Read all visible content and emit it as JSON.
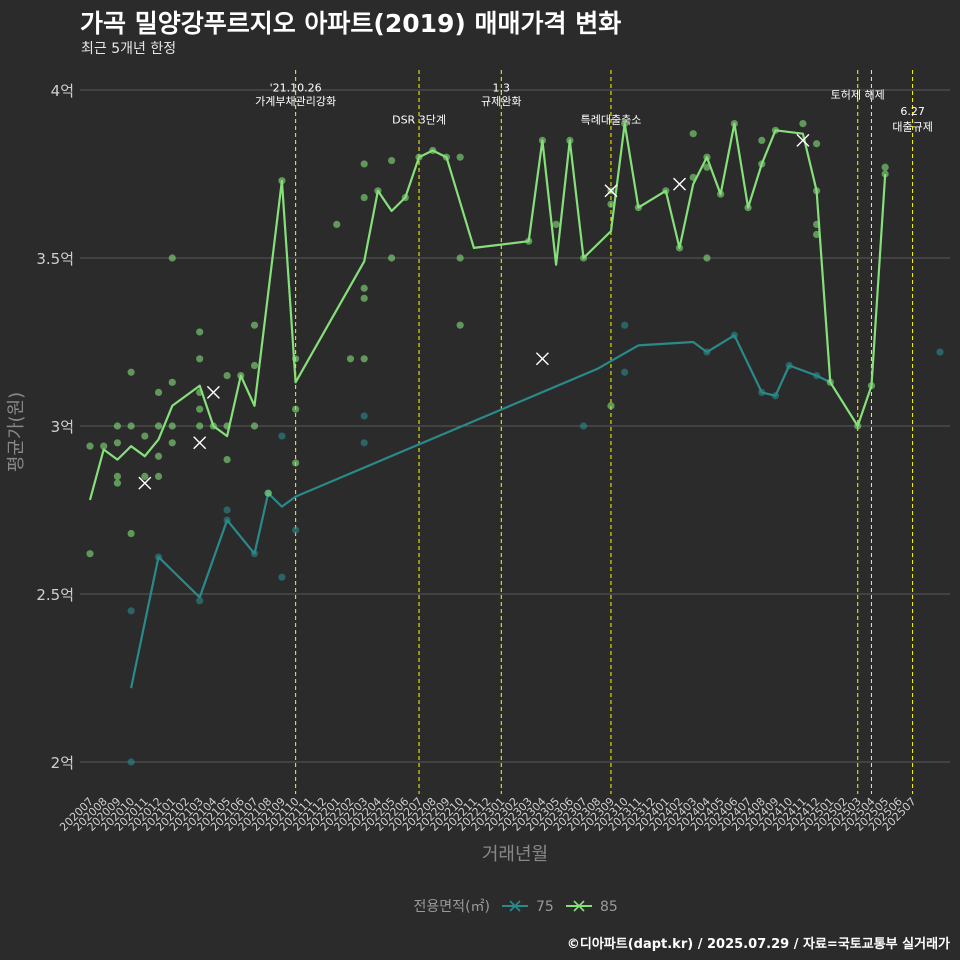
{
  "title": "가곡 밀양강푸르지오 아파트(2019) 매매가격 변화",
  "subtitle": "최근 5개년 한정",
  "credit": "©디아파트(dapt.kr) / 2025.07.29 / 자료=국토교통부 실거래가",
  "colors": {
    "background": "#2b2b2c",
    "grid": "#5a5a5a",
    "series_75": "#2a8a8a",
    "series_85": "#86e07a",
    "event_line": "#ffff00"
  },
  "chart_data": {
    "type": "line",
    "xlabel": "거래년월",
    "ylabel": "평균가(원)",
    "ylim": [
      1.85,
      4.05
    ],
    "yticks": [
      2,
      2.5,
      3,
      3.5,
      4
    ],
    "ytick_labels": [
      "2억",
      "2.5억",
      "3억",
      "3.5억",
      "4억"
    ],
    "grid": true,
    "categories": [
      "202007",
      "202008",
      "202009",
      "202010",
      "202011",
      "202012",
      "202101",
      "202102",
      "202103",
      "202104",
      "202105",
      "202106",
      "202107",
      "202108",
      "202109",
      "202110",
      "202111",
      "202112",
      "202201",
      "202202",
      "202203",
      "202204",
      "202205",
      "202206",
      "202207",
      "202208",
      "202209",
      "202210",
      "202211",
      "202212",
      "202301",
      "202302",
      "202303",
      "202304",
      "202305",
      "202306",
      "202307",
      "202308",
      "202309",
      "202310",
      "202311",
      "202312",
      "202401",
      "202402",
      "202403",
      "202404",
      "202405",
      "202406",
      "202407",
      "202408",
      "202409",
      "202410",
      "202411",
      "202412",
      "202501",
      "202502",
      "202503",
      "202504",
      "202505",
      "202506",
      "202507"
    ],
    "legend": {
      "title": "전용면적(㎡)",
      "position": "bottom",
      "entries": [
        "75",
        "85"
      ]
    },
    "series": [
      {
        "name": "75",
        "color": "#2a8a8a",
        "line": [
          [
            3,
            2.22
          ],
          [
            5,
            2.61
          ],
          [
            8,
            2.49
          ],
          [
            10,
            2.72
          ],
          [
            12,
            2.62
          ],
          [
            13,
            2.8
          ],
          [
            14,
            2.76
          ],
          [
            15,
            2.79
          ],
          [
            37,
            3.17
          ],
          [
            40,
            3.24
          ],
          [
            44,
            3.25
          ],
          [
            45,
            3.22
          ],
          [
            47,
            3.27
          ],
          [
            49,
            3.1
          ],
          [
            50,
            3.09
          ],
          [
            51,
            3.18
          ],
          [
            53,
            3.15
          ],
          [
            54,
            3.13
          ]
        ],
        "points": [
          [
            3,
            2.45
          ],
          [
            3,
            2.0
          ],
          [
            5,
            2.61
          ],
          [
            8,
            2.48
          ],
          [
            10,
            2.72
          ],
          [
            10,
            2.75
          ],
          [
            12,
            2.62
          ],
          [
            13,
            2.8
          ],
          [
            14,
            2.55
          ],
          [
            14,
            2.97
          ],
          [
            15,
            2.69
          ],
          [
            20,
            3.03
          ],
          [
            20,
            2.95
          ],
          [
            36,
            3.0
          ],
          [
            39,
            3.3
          ],
          [
            39,
            3.16
          ],
          [
            45,
            3.22
          ],
          [
            47,
            3.27
          ],
          [
            49,
            3.1
          ],
          [
            50,
            3.09
          ],
          [
            51,
            3.18
          ],
          [
            53,
            3.15
          ],
          [
            62,
            3.22
          ]
        ],
        "x_marks": []
      },
      {
        "name": "85",
        "color": "#86e07a",
        "line": [
          [
            0,
            2.78
          ],
          [
            1,
            2.93
          ],
          [
            2,
            2.9
          ],
          [
            3,
            2.94
          ],
          [
            4,
            2.91
          ],
          [
            5,
            2.96
          ],
          [
            6,
            3.06
          ],
          [
            8,
            3.12
          ],
          [
            9,
            3.0
          ],
          [
            10,
            2.97
          ],
          [
            11,
            3.15
          ],
          [
            12,
            3.06
          ],
          [
            14,
            3.73
          ],
          [
            15,
            3.13
          ],
          [
            20,
            3.49
          ],
          [
            21,
            3.7
          ],
          [
            22,
            3.64
          ],
          [
            23,
            3.68
          ],
          [
            24,
            3.8
          ],
          [
            25,
            3.82
          ],
          [
            26,
            3.8
          ],
          [
            28,
            3.53
          ],
          [
            32,
            3.55
          ],
          [
            33,
            3.85
          ],
          [
            34,
            3.48
          ],
          [
            35,
            3.85
          ],
          [
            36,
            3.5
          ],
          [
            38,
            3.58
          ],
          [
            39,
            3.9
          ],
          [
            40,
            3.65
          ],
          [
            42,
            3.7
          ],
          [
            43,
            3.53
          ],
          [
            44,
            3.72
          ],
          [
            45,
            3.8
          ],
          [
            46,
            3.69
          ],
          [
            47,
            3.9
          ],
          [
            48,
            3.65
          ],
          [
            49,
            3.78
          ],
          [
            50,
            3.88
          ],
          [
            52,
            3.87
          ],
          [
            53,
            3.7
          ],
          [
            54,
            3.13
          ],
          [
            56,
            3.0
          ],
          [
            57,
            3.12
          ],
          [
            58,
            3.75
          ]
        ],
        "points": [
          [
            0,
            2.94
          ],
          [
            0,
            2.62
          ],
          [
            1,
            2.94
          ],
          [
            2,
            2.85
          ],
          [
            2,
            2.83
          ],
          [
            2,
            2.95
          ],
          [
            2,
            3.0
          ],
          [
            3,
            3.16
          ],
          [
            3,
            2.68
          ],
          [
            3,
            3.0
          ],
          [
            4,
            2.85
          ],
          [
            4,
            2.97
          ],
          [
            5,
            2.85
          ],
          [
            5,
            2.91
          ],
          [
            5,
            3.0
          ],
          [
            5,
            3.1
          ],
          [
            6,
            3.5
          ],
          [
            6,
            3.13
          ],
          [
            6,
            3.0
          ],
          [
            6,
            2.95
          ],
          [
            8,
            3.28
          ],
          [
            8,
            3.2
          ],
          [
            8,
            3.1
          ],
          [
            8,
            3.05
          ],
          [
            8,
            3.0
          ],
          [
            9,
            3.0
          ],
          [
            10,
            3.15
          ],
          [
            10,
            3.0
          ],
          [
            10,
            2.9
          ],
          [
            11,
            3.15
          ],
          [
            12,
            3.3
          ],
          [
            12,
            3.18
          ],
          [
            12,
            3.0
          ],
          [
            13,
            2.8
          ],
          [
            14,
            3.73
          ],
          [
            15,
            3.2
          ],
          [
            15,
            3.05
          ],
          [
            15,
            2.89
          ],
          [
            18,
            3.6
          ],
          [
            19,
            3.2
          ],
          [
            20,
            3.78
          ],
          [
            20,
            3.68
          ],
          [
            20,
            3.41
          ],
          [
            20,
            3.38
          ],
          [
            20,
            3.2
          ],
          [
            21,
            3.7
          ],
          [
            22,
            3.79
          ],
          [
            22,
            3.5
          ],
          [
            23,
            3.68
          ],
          [
            24,
            3.8
          ],
          [
            25,
            3.82
          ],
          [
            26,
            3.8
          ],
          [
            27,
            3.8
          ],
          [
            27,
            3.5
          ],
          [
            27,
            3.3
          ],
          [
            32,
            3.55
          ],
          [
            33,
            3.85
          ],
          [
            34,
            3.6
          ],
          [
            35,
            3.85
          ],
          [
            36,
            3.5
          ],
          [
            38,
            3.7
          ],
          [
            38,
            3.66
          ],
          [
            38,
            3.06
          ],
          [
            39,
            3.9
          ],
          [
            40,
            3.65
          ],
          [
            42,
            3.7
          ],
          [
            43,
            3.53
          ],
          [
            44,
            3.74
          ],
          [
            44,
            3.87
          ],
          [
            45,
            3.8
          ],
          [
            45,
            3.77
          ],
          [
            45,
            3.5
          ],
          [
            46,
            3.69
          ],
          [
            47,
            3.9
          ],
          [
            48,
            3.65
          ],
          [
            49,
            3.78
          ],
          [
            49,
            3.85
          ],
          [
            50,
            3.88
          ],
          [
            52,
            3.9
          ],
          [
            53,
            3.84
          ],
          [
            53,
            3.7
          ],
          [
            53,
            3.6
          ],
          [
            53,
            3.57
          ],
          [
            54,
            3.13
          ],
          [
            56,
            3.0
          ],
          [
            57,
            3.12
          ],
          [
            58,
            3.77
          ],
          [
            58,
            3.75
          ]
        ],
        "x_marks": [
          [
            4,
            2.83
          ],
          [
            8,
            2.95
          ],
          [
            9,
            3.1
          ],
          [
            33,
            3.2
          ],
          [
            38,
            3.7
          ],
          [
            43,
            3.72
          ],
          [
            52,
            3.85
          ]
        ]
      }
    ],
    "annotations": [
      {
        "x": 15,
        "lines": [
          "'21.10.26",
          "가계부채관리강화"
        ],
        "label_y": [
          3.995,
          3.955
        ]
      },
      {
        "x": 24,
        "lines": [
          "DSR 3단계"
        ],
        "label_y": [
          3.9
        ]
      },
      {
        "x": 30,
        "lines": [
          "1.3",
          "규제완화"
        ],
        "label_y": [
          3.995,
          3.955
        ]
      },
      {
        "x": 38,
        "lines": [
          "특례대출축소"
        ],
        "label_y": [
          3.9
        ]
      },
      {
        "x": 56,
        "lines": [
          "토허제 해제"
        ],
        "label_y": [
          3.975
        ]
      },
      {
        "x": 57,
        "lines": [],
        "label_y": []
      },
      {
        "x": 60,
        "lines": [
          "6.27",
          "대출규제"
        ],
        "label_y": [
          3.925,
          3.88
        ]
      }
    ]
  }
}
